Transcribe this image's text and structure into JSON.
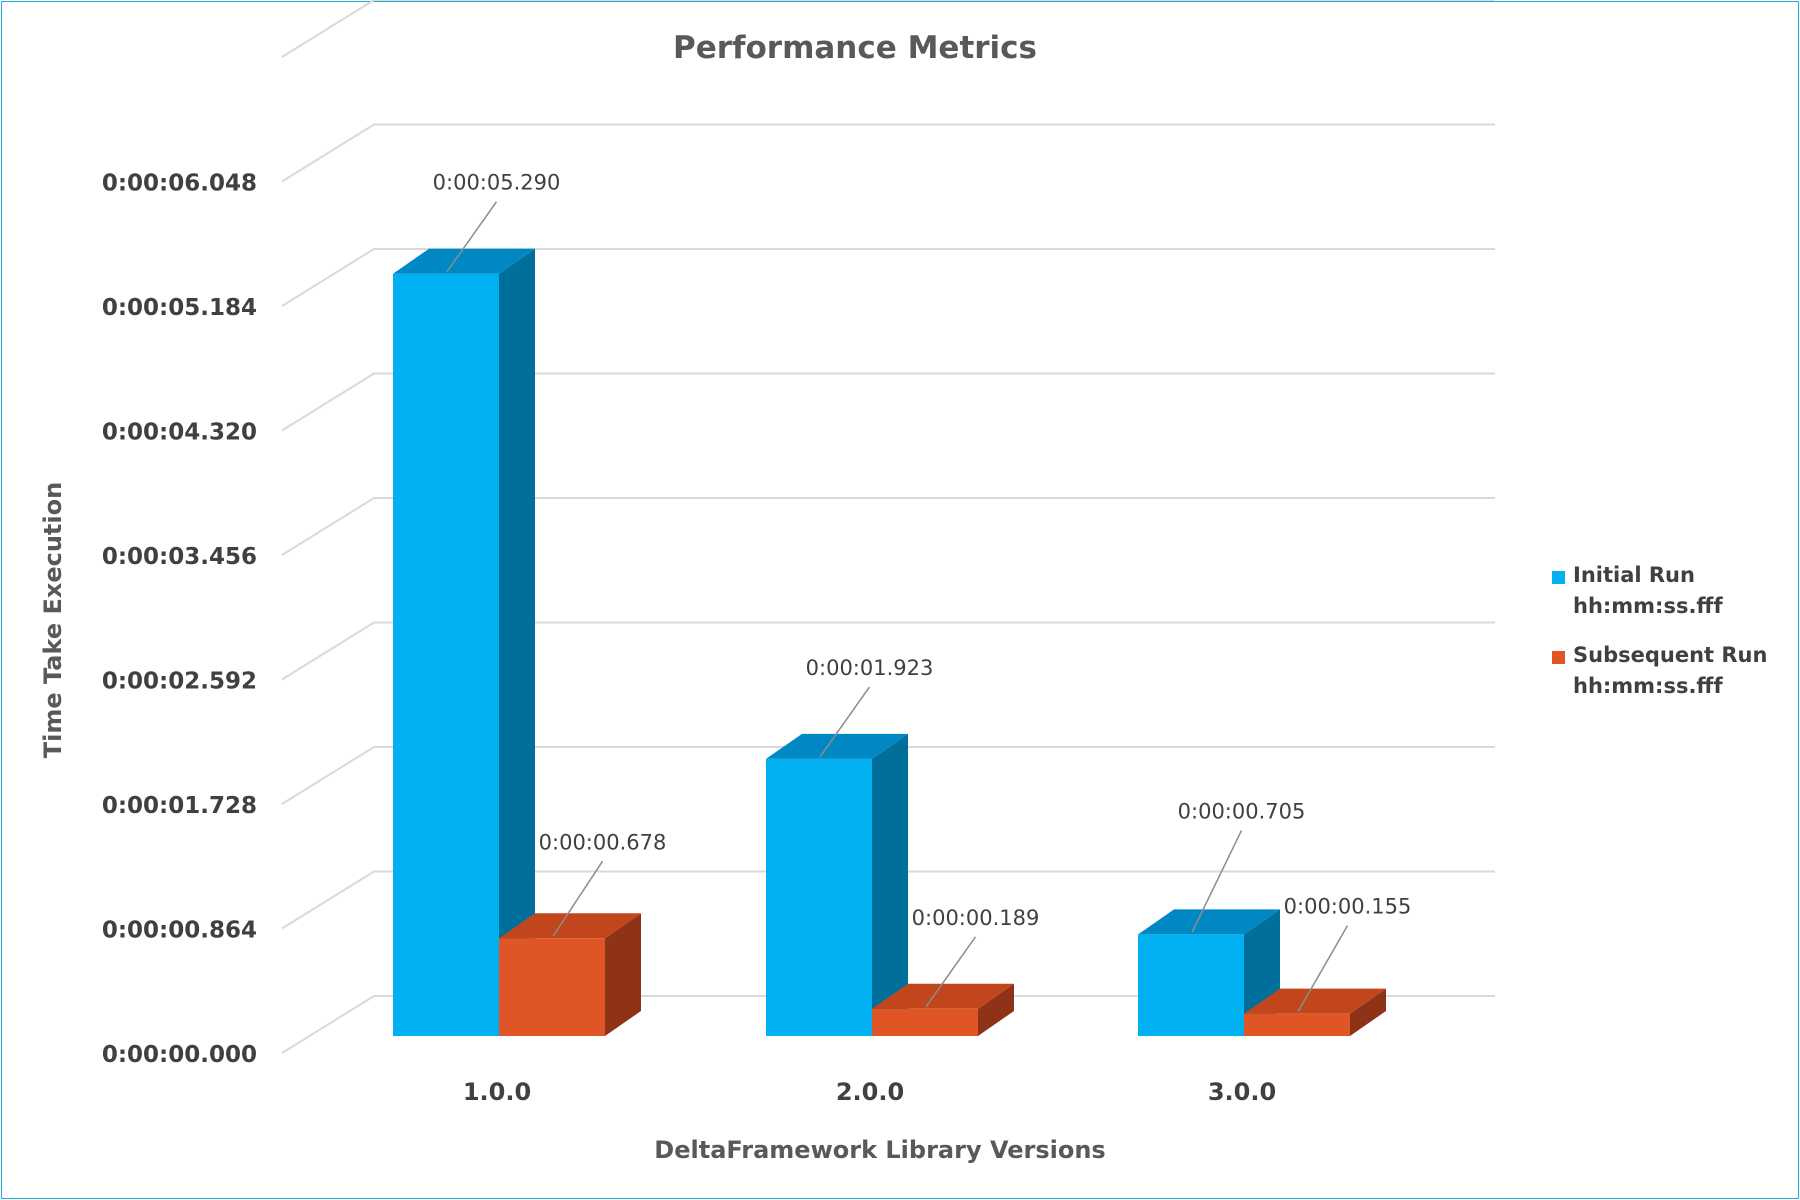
{
  "colors": {
    "initial_front": "#00b0f0",
    "initial_top": "#0088c5",
    "initial_side": "#006f9b",
    "subsequent_front": "#e05526",
    "subsequent_top": "#c2461c",
    "subsequent_side": "#8e3317",
    "frame_border": "#29a8e0"
  },
  "chart_data": {
    "type": "bar",
    "title": "Performance Metrics",
    "xlabel": "DeltaFramework Library Versions",
    "ylabel": "Time Take Execution",
    "categories": [
      "1.0.0",
      "2.0.0",
      "3.0.0"
    ],
    "y_ticks": [
      "0:00:00.000",
      "0:00:00.864",
      "0:00:01.728",
      "0:00:02.592",
      "0:00:03.456",
      "0:00:04.320",
      "0:00:05.184",
      "0:00:06.048"
    ],
    "ylim": [
      0,
      6.912
    ],
    "y_unit": "seconds",
    "grid": true,
    "legend_position": "right",
    "series": [
      {
        "name": "Initial Run hh:mm:ss.fff",
        "legend_lines": [
          "Initial Run",
          "hh:mm:ss.fff"
        ],
        "values": [
          5.29,
          1.923,
          0.705
        ],
        "labels": [
          "0:00:05.290",
          "0:00:01.923",
          "0:00:00.705"
        ]
      },
      {
        "name": "Subsequent Run hh:mm:ss.fff",
        "legend_lines": [
          "Subsequent Run",
          "hh:mm:ss.fff"
        ],
        "values": [
          0.678,
          0.189,
          0.155
        ],
        "labels": [
          "0:00:00.678",
          "0:00:00.189",
          "0:00:00.155"
        ]
      }
    ]
  }
}
